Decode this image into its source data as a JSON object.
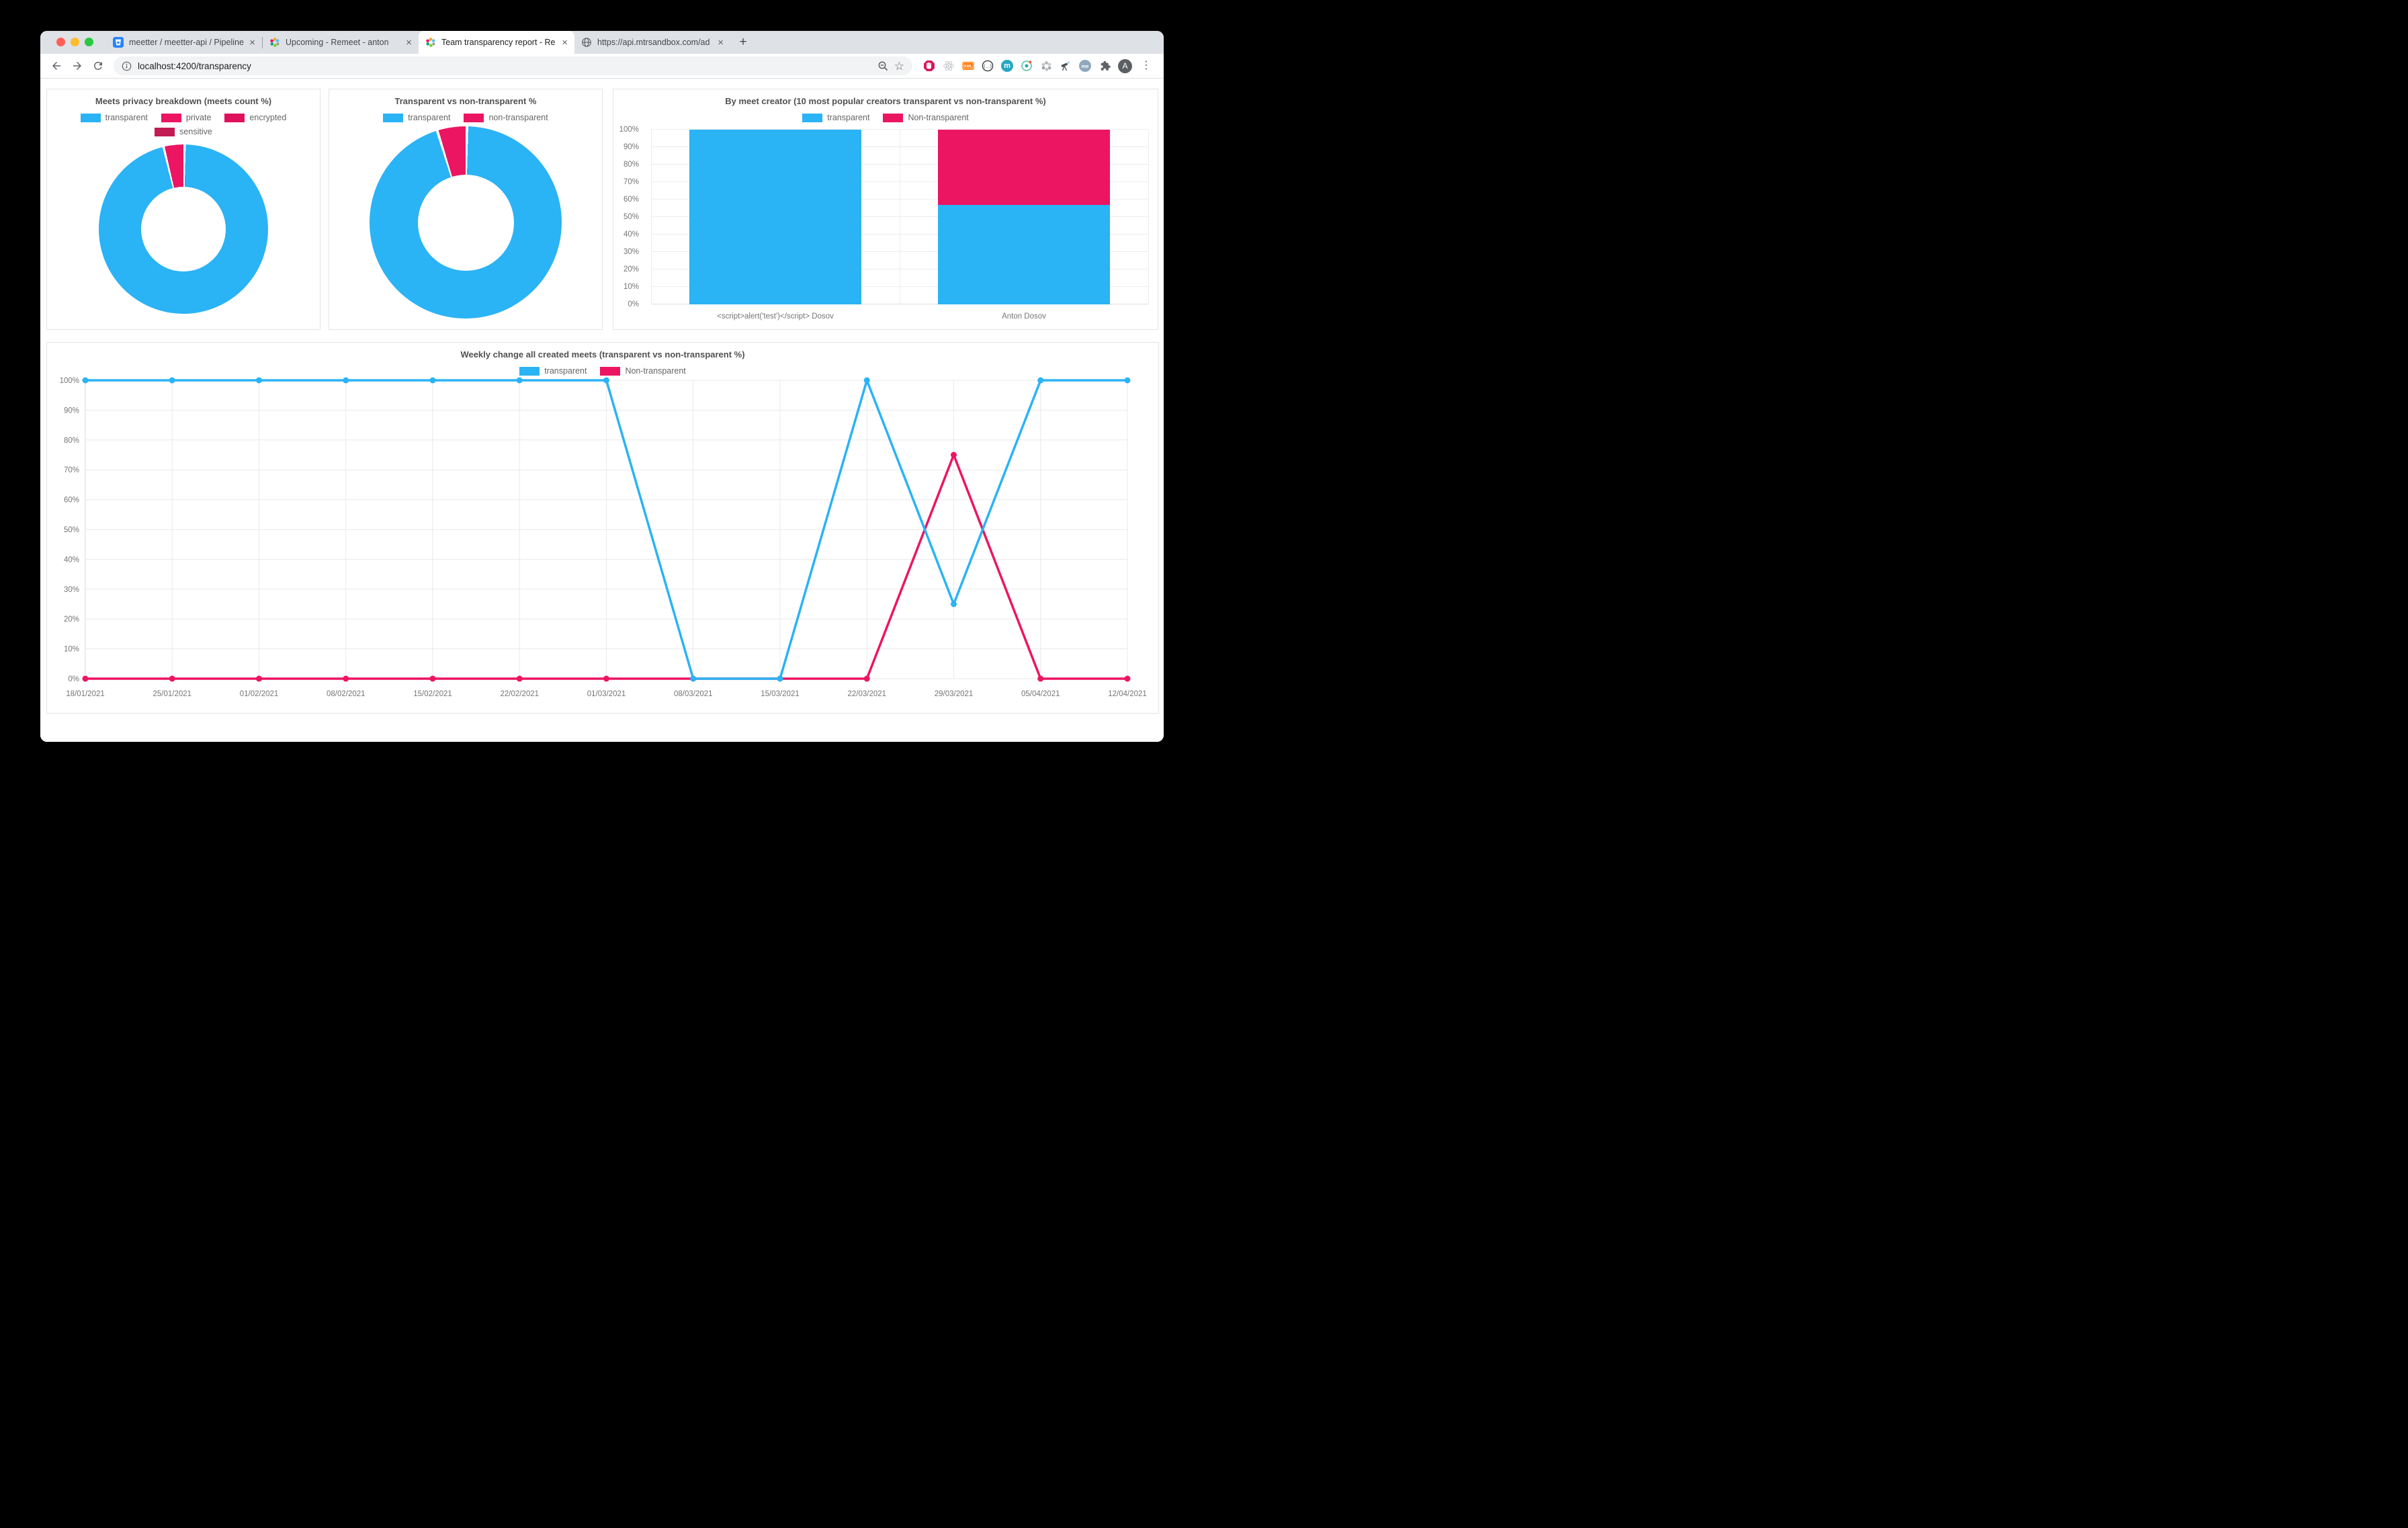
{
  "browser": {
    "traffic_lights": [
      "close",
      "minimize",
      "fullscreen"
    ],
    "tabs": [
      {
        "title": "meetter / meetter-api / Pipeline",
        "favicon": "bitbucket-icon",
        "active": false
      },
      {
        "title": "Upcoming - Remeet - anton",
        "favicon": "remeet-icon",
        "active": false
      },
      {
        "title": "Team transparency report - Re",
        "favicon": "remeet-icon",
        "active": true
      },
      {
        "title": "https://api.mtrsandbox.com/ad",
        "favicon": "globe-icon",
        "active": false
      }
    ],
    "close_glyph": "×",
    "new_tab_glyph": "+",
    "url": "localhost:4200/transparency",
    "bookmark_star_glyph": "☆",
    "menu_glyph": "⋮",
    "avatar_initial": "A",
    "extension_badges": {
      "xml": "XML",
      "braces": "{…}",
      "m": "m",
      "me": "me"
    }
  },
  "colors": {
    "transparent_blue": "#2AB3F5",
    "non_transparent_pink": "#EC1562",
    "encrypted_pink": "#E0105C",
    "sensitive_crimson": "#C11C53",
    "tabstrip_bg": "#DEE1E6",
    "grid_line": "#E9E9E9"
  },
  "chart_data": [
    {
      "type": "pie",
      "style": "donut",
      "title": "Meets privacy breakdown (meets count %)",
      "labels": [
        "transparent",
        "private",
        "encrypted",
        "sensitive"
      ],
      "values": [
        96,
        4,
        0,
        0
      ],
      "colors": [
        "#2AB3F5",
        "#EC1562",
        "#E0105C",
        "#C11C53"
      ],
      "legend_position": "top"
    },
    {
      "type": "pie",
      "style": "donut",
      "title": "Transparent vs non-transparent %",
      "labels": [
        "transparent",
        "non-transparent"
      ],
      "values": [
        95,
        5
      ],
      "colors": [
        "#2AB3F5",
        "#EC1562"
      ],
      "legend_position": "top"
    },
    {
      "type": "bar",
      "stacked": true,
      "title": "By meet creator (10 most popular creators transparent vs non-transparent %)",
      "categories": [
        "<script>alert('test')</script> Dosov",
        "Anton Dosov"
      ],
      "series": [
        {
          "name": "transparent",
          "color": "#2AB3F5",
          "values": [
            100,
            57
          ]
        },
        {
          "name": "Non-transparent",
          "color": "#EC1562",
          "values": [
            0,
            43
          ]
        }
      ],
      "yticks": [
        "0%",
        "10%",
        "20%",
        "30%",
        "40%",
        "50%",
        "60%",
        "70%",
        "80%",
        "90%",
        "100%"
      ],
      "ylim": [
        0,
        100
      ],
      "grid": true,
      "legend_position": "top"
    },
    {
      "type": "line",
      "title": "Weekly change all created meets (transparent vs non-transparent %)",
      "x": [
        "18/01/2021",
        "25/01/2021",
        "01/02/2021",
        "08/02/2021",
        "15/02/2021",
        "22/02/2021",
        "01/03/2021",
        "08/03/2021",
        "15/03/2021",
        "22/03/2021",
        "29/03/2021",
        "05/04/2021",
        "12/04/2021"
      ],
      "series": [
        {
          "name": "transparent",
          "color": "#2AB3F5",
          "values": [
            100,
            100,
            100,
            100,
            100,
            100,
            100,
            0,
            0,
            100,
            25,
            100,
            100
          ]
        },
        {
          "name": "Non-transparent",
          "color": "#EC1562",
          "values": [
            0,
            0,
            0,
            0,
            0,
            0,
            0,
            0,
            0,
            0,
            75,
            0,
            0
          ]
        }
      ],
      "yticks": [
        "0%",
        "10%",
        "20%",
        "30%",
        "40%",
        "50%",
        "60%",
        "70%",
        "80%",
        "90%",
        "100%"
      ],
      "ylim": [
        0,
        100
      ],
      "grid": true,
      "legend_position": "top"
    }
  ]
}
